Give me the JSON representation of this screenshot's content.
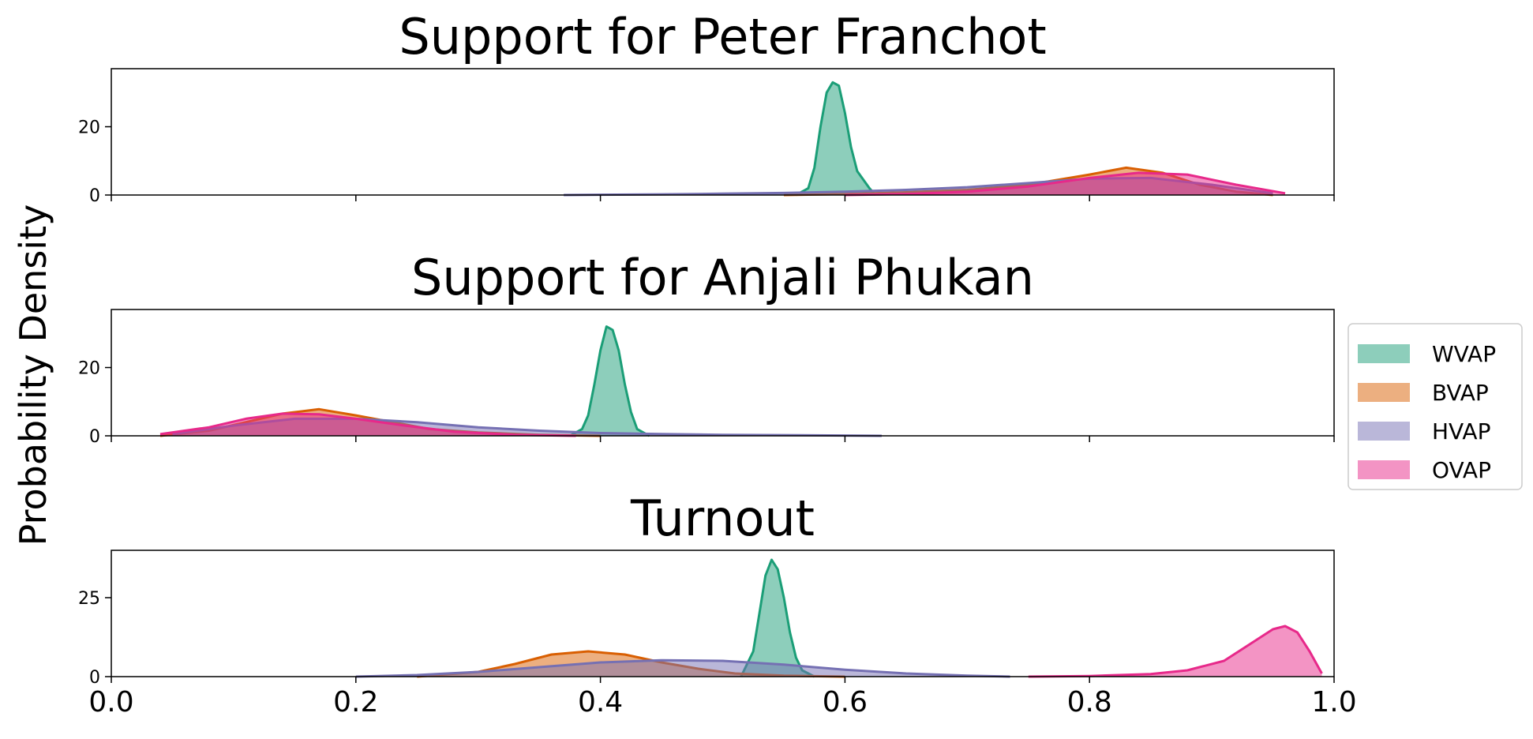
{
  "chart_data": {
    "type": "area",
    "ylabel": "Probability Density",
    "xlim": [
      0.0,
      1.0
    ],
    "xticks": [
      "0.0",
      "0.2",
      "0.4",
      "0.6",
      "0.8",
      "1.0"
    ],
    "legend": {
      "placement": "right",
      "entries": [
        {
          "name": "WVAP",
          "color": "#1b9e77"
        },
        {
          "name": "BVAP",
          "color": "#d95f02"
        },
        {
          "name": "HVAP",
          "color": "#7570b3"
        },
        {
          "name": "OVAP",
          "color": "#e7298a"
        }
      ]
    },
    "panels": [
      {
        "title": "Support for Peter Franchot",
        "ylim": [
          0,
          37
        ],
        "yticks": [
          0,
          20
        ],
        "series": [
          {
            "name": "WVAP",
            "color": "#1b9e77",
            "x": [
              0.56,
              0.57,
              0.575,
              0.58,
              0.585,
              0.59,
              0.595,
              0.6,
              0.605,
              0.61,
              0.62,
              0.625
            ],
            "y": [
              0,
              2,
              8,
              20,
              30,
              33,
              32,
              24,
              14,
              7,
              2,
              0
            ]
          },
          {
            "name": "BVAP",
            "color": "#d95f02",
            "x": [
              0.55,
              0.6,
              0.65,
              0.7,
              0.75,
              0.8,
              0.83,
              0.86,
              0.89,
              0.92,
              0.95
            ],
            "y": [
              0,
              0.3,
              0.8,
              1.5,
              3,
              6,
              8,
              6.5,
              3,
              1,
              0
            ]
          },
          {
            "name": "HVAP",
            "color": "#7570b3",
            "x": [
              0.37,
              0.45,
              0.5,
              0.55,
              0.6,
              0.65,
              0.7,
              0.75,
              0.8,
              0.85,
              0.9,
              0.95
            ],
            "y": [
              0,
              0.2,
              0.4,
              0.6,
              1,
              1.5,
              2.3,
              3.5,
              4.8,
              5,
              3,
              0.5
            ]
          },
          {
            "name": "OVAP",
            "color": "#e7298a",
            "x": [
              0.6,
              0.65,
              0.7,
              0.75,
              0.8,
              0.84,
              0.88,
              0.92,
              0.96
            ],
            "y": [
              0,
              0.3,
              1,
              2.5,
              5,
              6.5,
              6,
              3,
              0.5
            ]
          }
        ]
      },
      {
        "title": "Support for Anjali Phukan",
        "ylim": [
          0,
          37
        ],
        "yticks": [
          0,
          20
        ],
        "series": [
          {
            "name": "WVAP",
            "color": "#1b9e77",
            "x": [
              0.375,
              0.385,
              0.39,
              0.395,
              0.4,
              0.405,
              0.41,
              0.415,
              0.42,
              0.425,
              0.43,
              0.44
            ],
            "y": [
              0,
              2,
              6,
              15,
              25,
              32,
              31,
              25,
              15,
              7,
              2,
              0
            ]
          },
          {
            "name": "BVAP",
            "color": "#d95f02",
            "x": [
              0.04,
              0.08,
              0.11,
              0.14,
              0.17,
              0.2,
              0.23,
              0.26,
              0.3,
              0.35,
              0.4
            ],
            "y": [
              0,
              1.5,
              4,
              6.5,
              7.8,
              6,
              4,
              2,
              1,
              0.3,
              0
            ]
          },
          {
            "name": "HVAP",
            "color": "#7570b3",
            "x": [
              0.05,
              0.1,
              0.15,
              0.2,
              0.25,
              0.3,
              0.35,
              0.4,
              0.45,
              0.5,
              0.55,
              0.63
            ],
            "y": [
              0.5,
              3,
              5,
              5,
              4,
              2.5,
              1.5,
              0.8,
              0.5,
              0.3,
              0.2,
              0
            ]
          },
          {
            "name": "OVAP",
            "color": "#e7298a",
            "x": [
              0.04,
              0.08,
              0.11,
              0.14,
              0.17,
              0.2,
              0.24,
              0.28,
              0.33,
              0.38
            ],
            "y": [
              0.5,
              2.5,
              5,
              6.5,
              6.3,
              5,
              3,
              1.2,
              0.3,
              0
            ]
          }
        ]
      },
      {
        "title": "Turnout",
        "ylim": [
          0,
          40
        ],
        "yticks": [
          0,
          25
        ],
        "series": [
          {
            "name": "WVAP",
            "color": "#1b9e77",
            "x": [
              0.515,
              0.525,
              0.53,
              0.535,
              0.54,
              0.545,
              0.55,
              0.555,
              0.56,
              0.565,
              0.575
            ],
            "y": [
              0,
              8,
              20,
              32,
              37,
              34,
              25,
              14,
              6,
              2,
              0
            ]
          },
          {
            "name": "BVAP",
            "color": "#d95f02",
            "x": [
              0.25,
              0.3,
              0.33,
              0.36,
              0.39,
              0.42,
              0.45,
              0.48,
              0.51,
              0.55,
              0.6
            ],
            "y": [
              0,
              1.5,
              4,
              7,
              8,
              7,
              4.5,
              2.5,
              1,
              0.3,
              0
            ]
          },
          {
            "name": "HVAP",
            "color": "#7570b3",
            "x": [
              0.2,
              0.25,
              0.3,
              0.35,
              0.4,
              0.45,
              0.5,
              0.55,
              0.6,
              0.65,
              0.7,
              0.735
            ],
            "y": [
              0,
              0.5,
              1.5,
              3,
              4.5,
              5.2,
              5,
              3.8,
              2.2,
              1,
              0.3,
              0
            ]
          },
          {
            "name": "OVAP",
            "color": "#e7298a",
            "x": [
              0.75,
              0.8,
              0.85,
              0.88,
              0.91,
              0.93,
              0.95,
              0.96,
              0.97,
              0.98,
              0.99
            ],
            "y": [
              0,
              0.2,
              0.8,
              2,
              5,
              10,
              15,
              16,
              14,
              8,
              1
            ]
          }
        ]
      }
    ]
  }
}
